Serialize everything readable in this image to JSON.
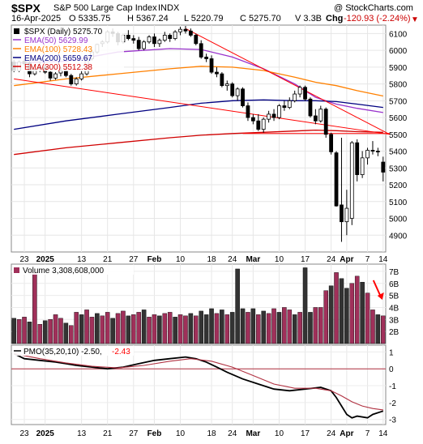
{
  "header": {
    "symbol": "$SPX",
    "name": "S&P 500 Large Cap Index",
    "exchange": "INDX",
    "copyright": "@ StockCharts.com",
    "date": "16-Apr-2025",
    "open": "O 5335.75",
    "high": "H 5367.24",
    "low": "L 5220.79",
    "close": "C 5275.70",
    "volume": "V 3.3B",
    "change_label": "Chg",
    "change_value": "-120.93 (-2.24%)",
    "change_icon": "triangle-down-icon"
  },
  "colors": {
    "ema50": "#9933cc",
    "ema100": "#ff8000",
    "ema200": "#000080",
    "ema300": "#d00000",
    "trendline": "#ff0000",
    "volume_up": "#a0305a",
    "volume_down": "#333333",
    "pmo": "#000000",
    "pmo_signal": "#b03040",
    "arrow": "#ff0000",
    "panel_border": "#888888"
  },
  "chart_data": [
    {
      "type": "candlestick",
      "title": "$SPX (Daily) 5275.70",
      "legend": [
        {
          "name": "$SPX (Daily)",
          "value": "5275.70",
          "color": "#000000"
        },
        {
          "name": "EMA(50)",
          "value": "5629.99",
          "color": "#9933cc"
        },
        {
          "name": "EMA(100)",
          "value": "5728.43",
          "color": "#ff8000"
        },
        {
          "name": "EMA(200)",
          "value": "5659.67",
          "color": "#000080"
        },
        {
          "name": "EMA(300)",
          "value": "5512.38",
          "color": "#d00000"
        }
      ],
      "x_tick_labels": [
        "23",
        "2025",
        "13",
        "21",
        "27",
        "Feb",
        "10",
        "18",
        "24",
        "Mar",
        "10",
        "17",
        "24",
        "Apr",
        "7",
        "14"
      ],
      "y_ticks": [
        4900,
        5000,
        5100,
        5200,
        5300,
        5400,
        5500,
        5600,
        5700,
        5800,
        5900,
        6000,
        6100
      ],
      "ylim": [
        4800,
        6150
      ],
      "grid": true,
      "legend_position": "top-left",
      "candles": [
        {
          "o": 5930,
          "h": 5945,
          "l": 5870,
          "c": 5880
        },
        {
          "o": 5880,
          "h": 5940,
          "l": 5870,
          "c": 5930
        },
        {
          "o": 5935,
          "h": 5950,
          "l": 5910,
          "c": 5920
        },
        {
          "o": 5925,
          "h": 5935,
          "l": 5840,
          "c": 5860
        },
        {
          "o": 5860,
          "h": 5890,
          "l": 5850,
          "c": 5885
        },
        {
          "o": 5890,
          "h": 5930,
          "l": 5870,
          "c": 5895
        },
        {
          "o": 5900,
          "h": 5910,
          "l": 5860,
          "c": 5870
        },
        {
          "o": 5870,
          "h": 5880,
          "l": 5820,
          "c": 5835
        },
        {
          "o": 5835,
          "h": 5870,
          "l": 5825,
          "c": 5860
        },
        {
          "o": 5865,
          "h": 5900,
          "l": 5845,
          "c": 5880
        },
        {
          "o": 5880,
          "h": 5900,
          "l": 5840,
          "c": 5850
        },
        {
          "o": 5850,
          "h": 5860,
          "l": 5790,
          "c": 5800
        },
        {
          "o": 5800,
          "h": 5840,
          "l": 5790,
          "c": 5830
        },
        {
          "o": 5830,
          "h": 5880,
          "l": 5820,
          "c": 5860
        },
        {
          "o": 5860,
          "h": 5960,
          "l": 5850,
          "c": 5950
        },
        {
          "o": 5950,
          "h": 6000,
          "l": 5940,
          "c": 5990
        },
        {
          "o": 5990,
          "h": 6040,
          "l": 5980,
          "c": 6035
        },
        {
          "o": 6040,
          "h": 6060,
          "l": 6020,
          "c": 6050
        },
        {
          "o": 6050,
          "h": 6120,
          "l": 6040,
          "c": 6110
        },
        {
          "o": 6110,
          "h": 6130,
          "l": 6080,
          "c": 6100
        },
        {
          "o": 6100,
          "h": 6110,
          "l": 6030,
          "c": 6050
        },
        {
          "o": 6050,
          "h": 6100,
          "l": 6040,
          "c": 6090
        },
        {
          "o": 6090,
          "h": 6120,
          "l": 6060,
          "c": 6070
        },
        {
          "o": 6070,
          "h": 6090,
          "l": 6040,
          "c": 6060
        },
        {
          "o": 6060,
          "h": 6080,
          "l": 6000,
          "c": 6010
        },
        {
          "o": 6010,
          "h": 6060,
          "l": 6000,
          "c": 6050
        },
        {
          "o": 6050,
          "h": 6090,
          "l": 6040,
          "c": 6080
        },
        {
          "o": 6080,
          "h": 6100,
          "l": 6020,
          "c": 6040
        },
        {
          "o": 6040,
          "h": 6070,
          "l": 6020,
          "c": 6060
        },
        {
          "o": 6060,
          "h": 6110,
          "l": 6050,
          "c": 6090
        },
        {
          "o": 6090,
          "h": 6100,
          "l": 6050,
          "c": 6070
        },
        {
          "o": 6070,
          "h": 6120,
          "l": 6060,
          "c": 6110
        },
        {
          "o": 6110,
          "h": 6140,
          "l": 6090,
          "c": 6125
        },
        {
          "o": 6125,
          "h": 6145,
          "l": 6100,
          "c": 6115
        },
        {
          "o": 6115,
          "h": 6130,
          "l": 6080,
          "c": 6090
        },
        {
          "o": 6090,
          "h": 6100,
          "l": 6030,
          "c": 6040
        },
        {
          "o": 6040,
          "h": 6060,
          "l": 5950,
          "c": 5960
        },
        {
          "o": 5960,
          "h": 5980,
          "l": 5930,
          "c": 5950
        },
        {
          "o": 5950,
          "h": 5970,
          "l": 5860,
          "c": 5870
        },
        {
          "o": 5870,
          "h": 5900,
          "l": 5840,
          "c": 5860
        },
        {
          "o": 5860,
          "h": 5870,
          "l": 5780,
          "c": 5790
        },
        {
          "o": 5790,
          "h": 5820,
          "l": 5760,
          "c": 5800
        },
        {
          "o": 5800,
          "h": 5810,
          "l": 5720,
          "c": 5730
        },
        {
          "o": 5730,
          "h": 5780,
          "l": 5700,
          "c": 5770
        },
        {
          "o": 5770,
          "h": 5780,
          "l": 5660,
          "c": 5670
        },
        {
          "o": 5670,
          "h": 5690,
          "l": 5580,
          "c": 5600
        },
        {
          "o": 5600,
          "h": 5620,
          "l": 5560,
          "c": 5580
        },
        {
          "o": 5580,
          "h": 5620,
          "l": 5520,
          "c": 5530
        },
        {
          "o": 5530,
          "h": 5600,
          "l": 5510,
          "c": 5590
        },
        {
          "o": 5590,
          "h": 5640,
          "l": 5570,
          "c": 5620
        },
        {
          "o": 5620,
          "h": 5650,
          "l": 5580,
          "c": 5600
        },
        {
          "o": 5600,
          "h": 5680,
          "l": 5590,
          "c": 5670
        },
        {
          "o": 5670,
          "h": 5700,
          "l": 5640,
          "c": 5660
        },
        {
          "o": 5660,
          "h": 5720,
          "l": 5650,
          "c": 5700
        },
        {
          "o": 5700,
          "h": 5760,
          "l": 5690,
          "c": 5740
        },
        {
          "o": 5740,
          "h": 5790,
          "l": 5720,
          "c": 5780
        },
        {
          "o": 5780,
          "h": 5790,
          "l": 5700,
          "c": 5710
        },
        {
          "o": 5710,
          "h": 5720,
          "l": 5600,
          "c": 5610
        },
        {
          "o": 5610,
          "h": 5650,
          "l": 5560,
          "c": 5580
        },
        {
          "o": 5580,
          "h": 5670,
          "l": 5570,
          "c": 5650
        },
        {
          "o": 5650,
          "h": 5660,
          "l": 5480,
          "c": 5500
        },
        {
          "o": 5500,
          "h": 5510,
          "l": 5380,
          "c": 5396
        },
        {
          "o": 5390,
          "h": 5400,
          "l": 5070,
          "c": 5074
        },
        {
          "o": 5080,
          "h": 5480,
          "l": 4860,
          "c": 4980
        },
        {
          "o": 4980,
          "h": 5170,
          "l": 4900,
          "c": 5060
        },
        {
          "o": 5000,
          "h": 5460,
          "l": 4960,
          "c": 5450
        },
        {
          "o": 5450,
          "h": 5470,
          "l": 5220,
          "c": 5260
        },
        {
          "o": 5260,
          "h": 5400,
          "l": 5240,
          "c": 5360
        },
        {
          "o": 5360,
          "h": 5420,
          "l": 5320,
          "c": 5405
        },
        {
          "o": 5405,
          "h": 5460,
          "l": 5380,
          "c": 5400
        },
        {
          "o": 5400,
          "h": 5420,
          "l": 5370,
          "c": 5396
        },
        {
          "o": 5335,
          "h": 5367,
          "l": 5220,
          "c": 5275
        }
      ],
      "ema_series": [
        {
          "name": "EMA(50)",
          "points": [
            [
              0,
              5925
            ],
            [
              10,
              5935
            ],
            [
              20,
              5990
            ],
            [
              30,
              6010
            ],
            [
              36,
              6005
            ],
            [
              42,
              5960
            ],
            [
              48,
              5890
            ],
            [
              54,
              5800
            ],
            [
              58,
              5720
            ],
            [
              62,
              5680
            ],
            [
              66,
              5655
            ],
            [
              71,
              5630
            ]
          ]
        },
        {
          "name": "EMA(100)",
          "points": [
            [
              0,
              5790
            ],
            [
              10,
              5830
            ],
            [
              20,
              5860
            ],
            [
              30,
              5890
            ],
            [
              36,
              5905
            ],
            [
              42,
              5900
            ],
            [
              48,
              5880
            ],
            [
              54,
              5840
            ],
            [
              58,
              5810
            ],
            [
              62,
              5790
            ],
            [
              66,
              5760
            ],
            [
              71,
              5728
            ]
          ]
        },
        {
          "name": "EMA(200)",
          "points": [
            [
              0,
              5530
            ],
            [
              10,
              5580
            ],
            [
              20,
              5620
            ],
            [
              30,
              5660
            ],
            [
              36,
              5685
            ],
            [
              42,
              5700
            ],
            [
              48,
              5705
            ],
            [
              54,
              5700
            ],
            [
              58,
              5700
            ],
            [
              62,
              5695
            ],
            [
              66,
              5680
            ],
            [
              71,
              5660
            ]
          ]
        },
        {
          "name": "EMA(300)",
          "points": [
            [
              0,
              5380
            ],
            [
              10,
              5420
            ],
            [
              20,
              5450
            ],
            [
              30,
              5480
            ],
            [
              36,
              5495
            ],
            [
              42,
              5505
            ],
            [
              48,
              5512
            ],
            [
              54,
              5520
            ],
            [
              58,
              5525
            ],
            [
              62,
              5522
            ],
            [
              66,
              5516
            ],
            [
              71,
              5512
            ]
          ]
        }
      ],
      "trendlines": [
        {
          "from": [
            0,
            5830
          ],
          "to": [
            71,
            5500
          ]
        },
        {
          "from": [
            33,
            6130
          ],
          "to": [
            71,
            5500
          ]
        },
        {
          "from": [
            44,
            5505
          ],
          "to": [
            71,
            5505
          ]
        }
      ]
    },
    {
      "type": "bar",
      "title": "Volume 3,308,608,000",
      "y_ticks": [
        "2B",
        "3B",
        "4B",
        "5B",
        "6B",
        "7B"
      ],
      "ylim": [
        1,
        7.6
      ],
      "unit": "billions",
      "values": [
        3.1,
        3.0,
        3.2,
        2.8,
        6.9,
        2.6,
        2.9,
        3.0,
        3.4,
        3.1,
        2.7,
        2.5,
        3.6,
        3.4,
        3.8,
        3.2,
        3.5,
        3.3,
        3.6,
        3.1,
        3.5,
        3.7,
        3.3,
        3.4,
        3.6,
        3.8,
        3.2,
        3.4,
        3.3,
        3.5,
        3.6,
        3.2,
        3.4,
        3.3,
        3.5,
        3.3,
        3.7,
        3.4,
        3.9,
        3.5,
        3.8,
        3.4,
        3.6,
        7.2,
        3.9,
        3.6,
        3.9,
        3.4,
        3.7,
        3.5,
        3.9,
        3.6,
        4.0,
        3.8,
        3.4,
        3.6,
        7.3,
        3.6,
        4.0,
        4.0,
        5.4,
        5.8,
        6.9,
        6.4,
        5.6,
        6.0,
        6.6,
        6.1,
        5.2,
        3.8,
        3.4,
        3.3
      ],
      "direction": [
        0,
        1,
        1,
        0,
        1,
        1,
        0,
        1,
        1,
        1,
        0,
        1,
        1,
        0,
        1,
        1,
        0,
        1,
        1,
        0,
        1,
        1,
        0,
        1,
        1,
        0,
        1,
        1,
        0,
        1,
        1,
        0,
        1,
        1,
        0,
        1,
        0,
        0,
        0,
        1,
        0,
        1,
        0,
        0,
        0,
        1,
        0,
        1,
        0,
        1,
        1,
        0,
        1,
        1,
        0,
        1,
        0,
        0,
        1,
        1,
        1,
        0,
        1,
        0,
        0,
        1,
        1,
        0,
        1,
        1,
        0,
        1
      ]
    },
    {
      "type": "line",
      "title": "PMO(35,20,10) -2.50, -2.43",
      "y_ticks": [
        -3,
        -2,
        -1,
        0,
        1
      ],
      "ylim": [
        -3.3,
        1.4
      ],
      "zero_line": true,
      "series": [
        {
          "name": "PMO(35,20,10)",
          "value": "-2.50",
          "points": [
            [
              0,
              0.9
            ],
            [
              2,
              0.6
            ],
            [
              5,
              0.5
            ],
            [
              8,
              0.4
            ],
            [
              10,
              0.3
            ],
            [
              12,
              0.2
            ],
            [
              15,
              0.1
            ],
            [
              18,
              0.0
            ],
            [
              21,
              0.1
            ],
            [
              24,
              0.3
            ],
            [
              27,
              0.5
            ],
            [
              30,
              0.6
            ],
            [
              33,
              0.7
            ],
            [
              35,
              0.6
            ],
            [
              37,
              0.4
            ],
            [
              39,
              0.1
            ],
            [
              41,
              -0.2
            ],
            [
              44,
              -0.6
            ],
            [
              47,
              -0.9
            ],
            [
              50,
              -1.2
            ],
            [
              53,
              -1.3
            ],
            [
              56,
              -1.2
            ],
            [
              59,
              -1.1
            ],
            [
              61,
              -1.3
            ],
            [
              62,
              -1.7
            ],
            [
              63,
              -2.2
            ],
            [
              64,
              -2.7
            ],
            [
              65,
              -2.9
            ],
            [
              66,
              -2.8
            ],
            [
              68,
              -2.9
            ],
            [
              69,
              -2.7
            ],
            [
              71,
              -2.5
            ]
          ]
        },
        {
          "name": "Signal",
          "value": "-2.43",
          "points": [
            [
              0,
              0.9
            ],
            [
              5,
              0.6
            ],
            [
              10,
              0.35
            ],
            [
              15,
              0.15
            ],
            [
              20,
              0.05
            ],
            [
              25,
              0.2
            ],
            [
              30,
              0.45
            ],
            [
              34,
              0.6
            ],
            [
              38,
              0.45
            ],
            [
              42,
              0.1
            ],
            [
              46,
              -0.4
            ],
            [
              50,
              -0.9
            ],
            [
              54,
              -1.15
            ],
            [
              58,
              -1.15
            ],
            [
              61,
              -1.3
            ],
            [
              63,
              -1.6
            ],
            [
              65,
              -1.95
            ],
            [
              67,
              -2.2
            ],
            [
              69,
              -2.35
            ],
            [
              71,
              -2.43
            ]
          ]
        }
      ]
    }
  ]
}
